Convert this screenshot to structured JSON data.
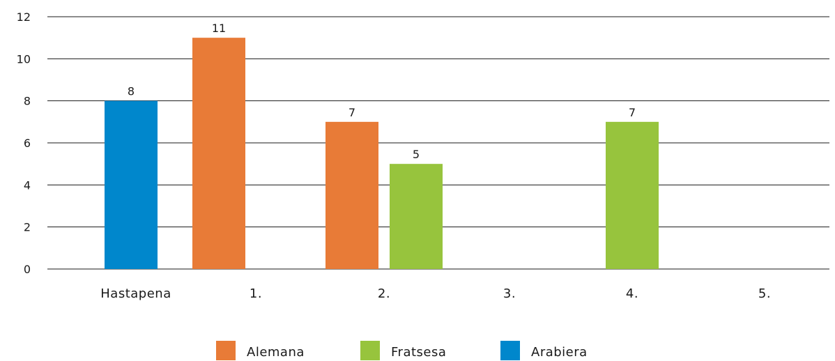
{
  "chart_data": {
    "type": "bar",
    "categories": [
      "Hastapena",
      "1.",
      "2.",
      "3.",
      "4.",
      "5."
    ],
    "series": [
      {
        "name": "Alemana",
        "color": "#E87B37",
        "values": [
          null,
          11,
          7,
          null,
          null,
          null
        ]
      },
      {
        "name": "Fratsesa",
        "color": "#97C43D",
        "values": [
          null,
          null,
          5,
          null,
          7,
          null
        ]
      },
      {
        "name": "Arabiera",
        "color": "#0087CC",
        "values": [
          8,
          null,
          null,
          null,
          null,
          null
        ]
      }
    ],
    "data_labels": [
      "8",
      "11",
      "7",
      "5",
      "7"
    ],
    "ylim": [
      0,
      12
    ],
    "yticks": [
      "0",
      "2",
      "4",
      "6",
      "8",
      "10",
      "12"
    ],
    "grid": true,
    "legend": "bottom-center"
  }
}
